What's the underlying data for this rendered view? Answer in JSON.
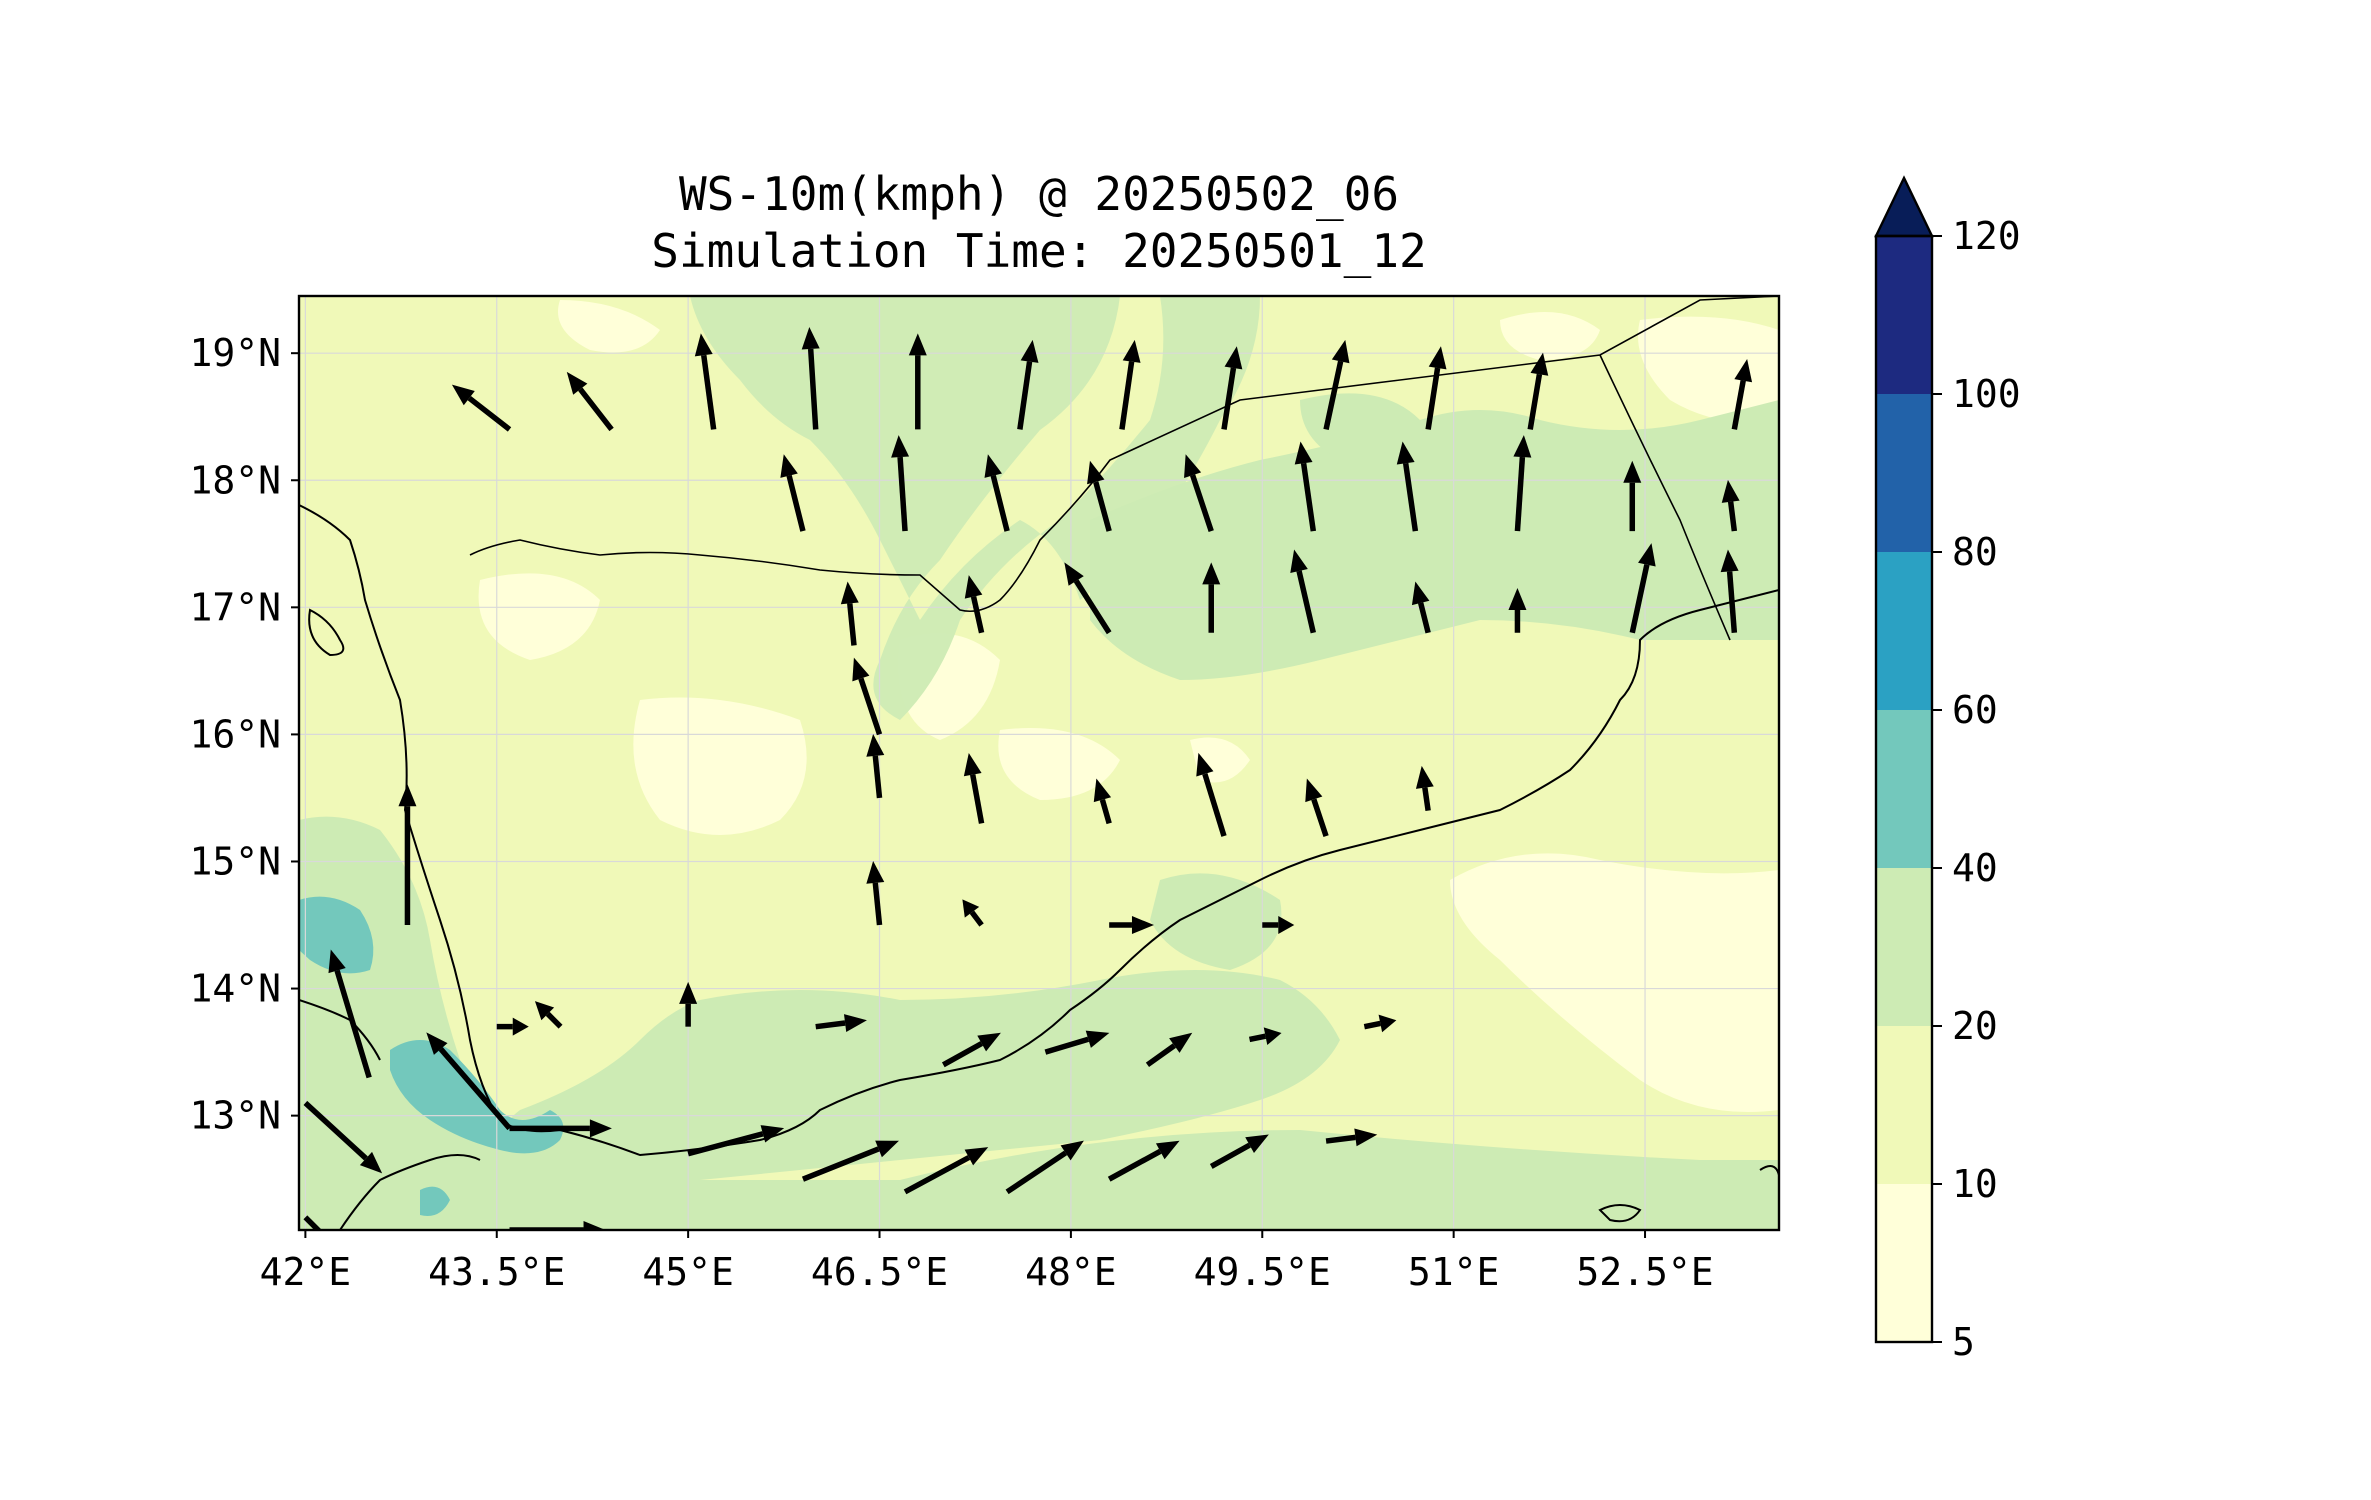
{
  "title": {
    "line1": "WS-10m(kmph) @ 20250502_06",
    "line2": "Simulation Time: 20250501_12"
  },
  "map": {
    "lon_range": [
      41.95,
      53.55
    ],
    "lat_range": [
      12.1,
      19.45
    ],
    "x_ticks": [
      {
        "value": 42.0,
        "label": "42°E"
      },
      {
        "value": 43.5,
        "label": "43.5°E"
      },
      {
        "value": 45.0,
        "label": "45°E"
      },
      {
        "value": 46.5,
        "label": "46.5°E"
      },
      {
        "value": 48.0,
        "label": "48°E"
      },
      {
        "value": 49.5,
        "label": "49.5°E"
      },
      {
        "value": 51.0,
        "label": "51°E"
      },
      {
        "value": 52.5,
        "label": "52.5°E"
      }
    ],
    "y_ticks": [
      {
        "value": 13,
        "label": "13°N"
      },
      {
        "value": 14,
        "label": "14°N"
      },
      {
        "value": 15,
        "label": "15°N"
      },
      {
        "value": 16,
        "label": "16°N"
      },
      {
        "value": 17,
        "label": "17°N"
      },
      {
        "value": 18,
        "label": "18°N"
      },
      {
        "value": 19,
        "label": "19°N"
      }
    ],
    "grid": true
  },
  "colorbar": {
    "levels": [
      {
        "label": "5",
        "color": "#ffffd9"
      },
      {
        "label": "10",
        "color": "#f0f9b8"
      },
      {
        "label": "20",
        "color": "#cdebb4"
      },
      {
        "label": "40",
        "color": "#73c8bc"
      },
      {
        "label": "60",
        "color": "#2ba1c3"
      },
      {
        "label": "80",
        "color": "#2262a9"
      },
      {
        "label": "100",
        "color": "#1d2a80"
      }
    ],
    "top_label": "120",
    "extend_color": "#081d58"
  },
  "colors": {
    "background_field": "#f0f9b8",
    "coast": "#000000",
    "arrow": "#000000"
  },
  "wind_field": {
    "units": "kmph",
    "grid_lons": [
      41.95,
      42.75,
      43.55,
      44.35,
      45.15,
      45.95,
      46.75,
      47.55,
      48.35,
      49.15,
      49.95,
      50.75,
      51.55,
      52.35,
      53.15
    ],
    "grid_lats": [
      12.15,
      12.93,
      13.71,
      14.49,
      15.27,
      16.05,
      16.83,
      17.61,
      18.39,
      19.17
    ],
    "vectors": [
      {
        "lon": 42.0,
        "lat": 12.2,
        "u": 22,
        "v": -22
      },
      {
        "lon": 42.0,
        "lat": 13.1,
        "u": 24,
        "v": -22
      },
      {
        "lon": 42.5,
        "lat": 13.3,
        "u": -12,
        "v": 40
      },
      {
        "lon": 42.8,
        "lat": 14.5,
        "u": 0,
        "v": 44
      },
      {
        "lon": 43.6,
        "lat": 12.9,
        "u": -26,
        "v": 30
      },
      {
        "lon": 43.6,
        "lat": 12.9,
        "u": 32,
        "v": 0
      },
      {
        "lon": 43.6,
        "lat": 12.1,
        "u": 30,
        "v": 0
      },
      {
        "lon": 45.0,
        "lat": 12.7,
        "u": 30,
        "v": 8
      },
      {
        "lon": 45.9,
        "lat": 12.5,
        "u": 30,
        "v": 12
      },
      {
        "lon": 46.7,
        "lat": 12.4,
        "u": 26,
        "v": 14
      },
      {
        "lon": 47.5,
        "lat": 12.4,
        "u": 24,
        "v": 16
      },
      {
        "lon": 48.3,
        "lat": 12.5,
        "u": 22,
        "v": 12
      },
      {
        "lon": 49.1,
        "lat": 12.6,
        "u": 18,
        "v": 10
      },
      {
        "lon": 50.0,
        "lat": 12.8,
        "u": 16,
        "v": 2
      },
      {
        "lon": 47.0,
        "lat": 13.4,
        "u": 18,
        "v": 10
      },
      {
        "lon": 47.8,
        "lat": 13.5,
        "u": 20,
        "v": 6
      },
      {
        "lon": 48.6,
        "lat": 13.4,
        "u": 14,
        "v": 10
      },
      {
        "lon": 49.4,
        "lat": 13.6,
        "u": 10,
        "v": 2
      },
      {
        "lon": 50.3,
        "lat": 13.7,
        "u": 10,
        "v": 2
      },
      {
        "lon": 46.0,
        "lat": 13.7,
        "u": 16,
        "v": 2
      },
      {
        "lon": 45.0,
        "lat": 13.7,
        "u": 0,
        "v": 14
      },
      {
        "lon": 44.0,
        "lat": 13.7,
        "u": -8,
        "v": 8
      },
      {
        "lon": 43.5,
        "lat": 13.7,
        "u": 10,
        "v": 0
      },
      {
        "lon": 46.5,
        "lat": 14.5,
        "u": -2,
        "v": 20
      },
      {
        "lon": 47.3,
        "lat": 14.5,
        "u": -6,
        "v": 8
      },
      {
        "lon": 48.3,
        "lat": 14.5,
        "u": 14,
        "v": 0
      },
      {
        "lon": 49.5,
        "lat": 14.5,
        "u": 10,
        "v": 0
      },
      {
        "lon": 46.5,
        "lat": 15.5,
        "u": -2,
        "v": 20
      },
      {
        "lon": 47.3,
        "lat": 15.3,
        "u": -4,
        "v": 22
      },
      {
        "lon": 48.3,
        "lat": 15.3,
        "u": -4,
        "v": 14
      },
      {
        "lon": 49.2,
        "lat": 15.2,
        "u": -8,
        "v": 26
      },
      {
        "lon": 50.0,
        "lat": 15.2,
        "u": -6,
        "v": 18
      },
      {
        "lon": 50.8,
        "lat": 15.4,
        "u": -2,
        "v": 14
      },
      {
        "lon": 46.5,
        "lat": 16.0,
        "u": -8,
        "v": 24
      },
      {
        "lon": 46.3,
        "lat": 16.7,
        "u": -2,
        "v": 20
      },
      {
        "lon": 47.3,
        "lat": 16.8,
        "u": -4,
        "v": 18
      },
      {
        "lon": 48.3,
        "lat": 16.8,
        "u": -14,
        "v": 22
      },
      {
        "lon": 49.1,
        "lat": 16.8,
        "u": 0,
        "v": 22
      },
      {
        "lon": 49.9,
        "lat": 16.8,
        "u": -6,
        "v": 26
      },
      {
        "lon": 50.8,
        "lat": 16.8,
        "u": -4,
        "v": 16
      },
      {
        "lon": 51.5,
        "lat": 16.8,
        "u": 0,
        "v": 14
      },
      {
        "lon": 52.4,
        "lat": 16.8,
        "u": 6,
        "v": 28
      },
      {
        "lon": 53.2,
        "lat": 16.8,
        "u": -2,
        "v": 26
      },
      {
        "lon": 45.9,
        "lat": 17.6,
        "u": -6,
        "v": 24
      },
      {
        "lon": 46.7,
        "lat": 17.6,
        "u": -2,
        "v": 30
      },
      {
        "lon": 47.5,
        "lat": 17.6,
        "u": -6,
        "v": 24
      },
      {
        "lon": 48.3,
        "lat": 17.6,
        "u": -6,
        "v": 22
      },
      {
        "lon": 49.1,
        "lat": 17.6,
        "u": -8,
        "v": 24
      },
      {
        "lon": 49.9,
        "lat": 17.6,
        "u": -4,
        "v": 28
      },
      {
        "lon": 50.7,
        "lat": 17.6,
        "u": -4,
        "v": 28
      },
      {
        "lon": 51.5,
        "lat": 17.6,
        "u": 2,
        "v": 30
      },
      {
        "lon": 52.4,
        "lat": 17.6,
        "u": 0,
        "v": 22
      },
      {
        "lon": 53.2,
        "lat": 17.6,
        "u": -2,
        "v": 16
      },
      {
        "lon": 45.2,
        "lat": 18.4,
        "u": -4,
        "v": 30
      },
      {
        "lon": 46.0,
        "lat": 18.4,
        "u": -2,
        "v": 32
      },
      {
        "lon": 46.8,
        "lat": 18.4,
        "u": 0,
        "v": 30
      },
      {
        "lon": 47.6,
        "lat": 18.4,
        "u": 4,
        "v": 28
      },
      {
        "lon": 48.4,
        "lat": 18.4,
        "u": 4,
        "v": 28
      },
      {
        "lon": 49.2,
        "lat": 18.4,
        "u": 4,
        "v": 26
      },
      {
        "lon": 50.0,
        "lat": 18.4,
        "u": 6,
        "v": 28
      },
      {
        "lon": 50.8,
        "lat": 18.4,
        "u": 4,
        "v": 26
      },
      {
        "lon": 51.6,
        "lat": 18.4,
        "u": 4,
        "v": 24
      },
      {
        "lon": 53.2,
        "lat": 18.4,
        "u": 4,
        "v": 22
      },
      {
        "lon": 44.4,
        "lat": 18.4,
        "u": -14,
        "v": 18
      },
      {
        "lon": 43.6,
        "lat": 18.4,
        "u": -18,
        "v": 14
      }
    ]
  }
}
